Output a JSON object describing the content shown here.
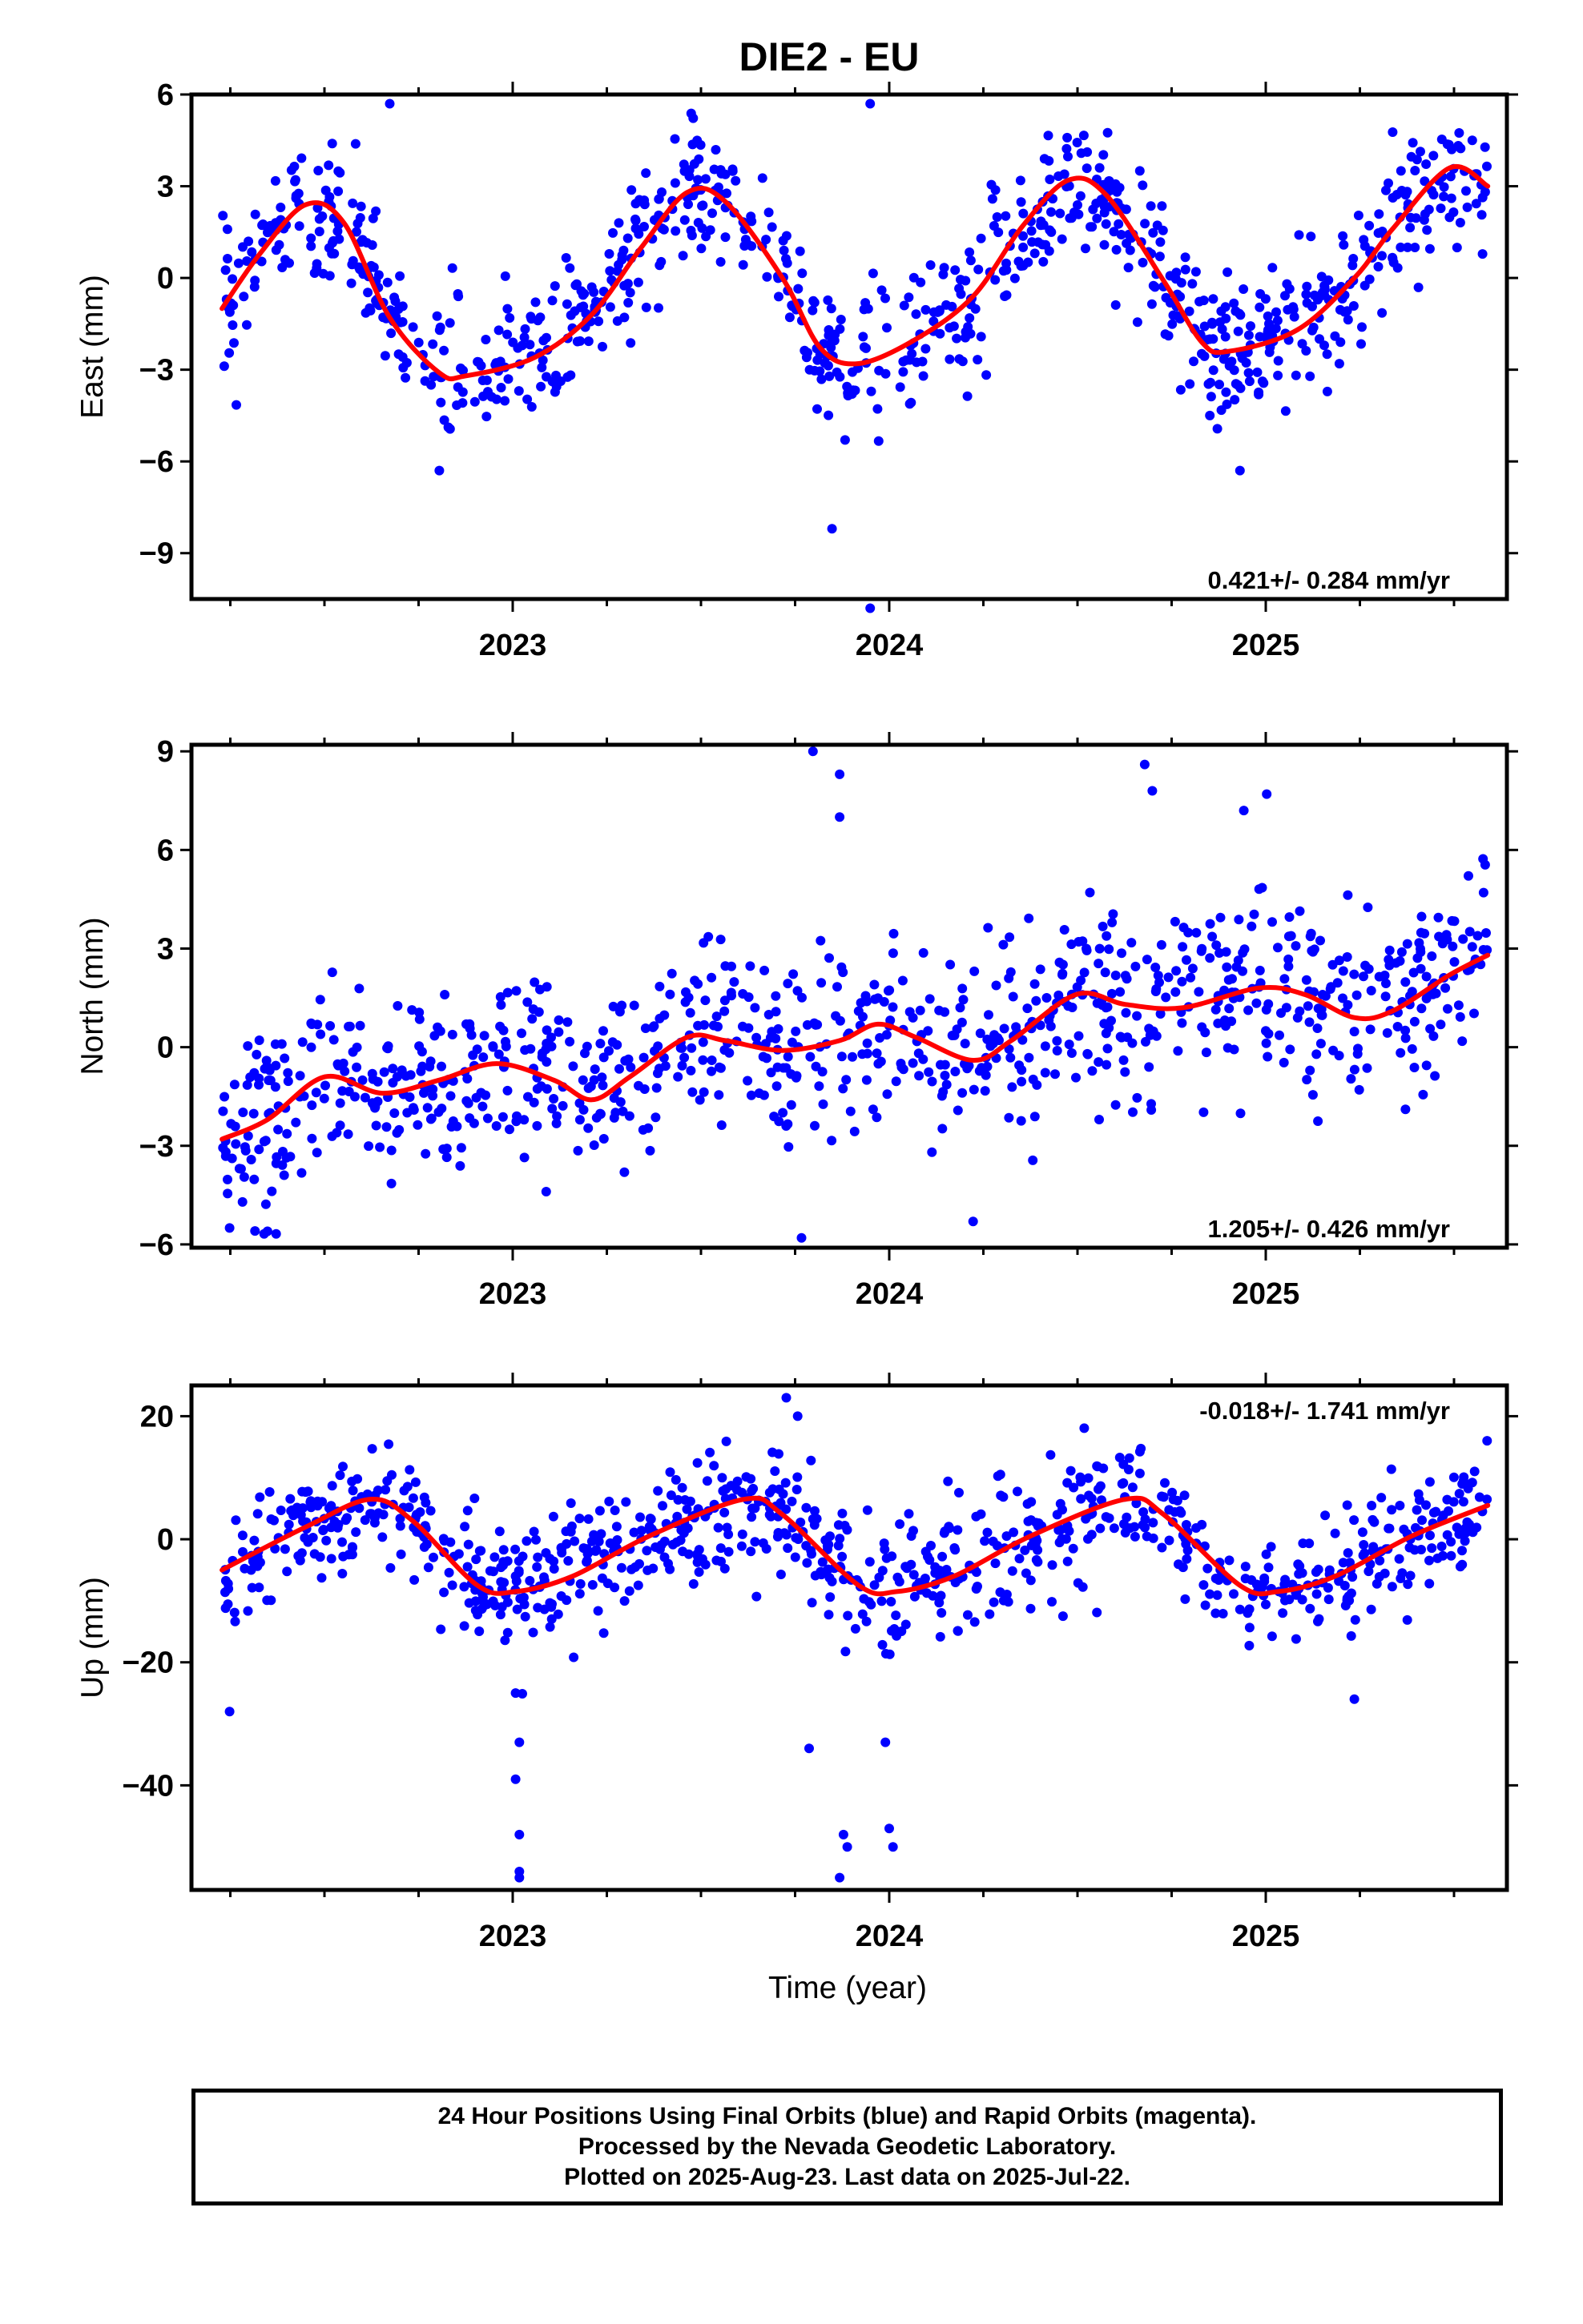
{
  "title": "DIE2 - EU",
  "xlabel": "Time (year)",
  "footer": {
    "line1": "24 Hour Positions Using Final Orbits (blue) and Rapid Orbits (magenta).",
    "line2": "Processed by the Nevada Geodetic Laboratory.",
    "line3": "Plotted on 2025-Aug-23. Last data on 2025-Jul-22."
  },
  "colors": {
    "points": "#0000ff",
    "fit": "#ff0000",
    "axes": "#000000"
  },
  "chart_data": [
    {
      "type": "scatter",
      "ylabel": "East (mm)",
      "xlim": [
        2022.2,
        2025.65
      ],
      "ylim": [
        -10.5,
        6
      ],
      "x_ticks": [
        "2023",
        "2024",
        "2025"
      ],
      "y_ticks": [
        6,
        3,
        0,
        -3,
        -6,
        -9
      ],
      "rate": "0.421+/- 0.284 mm/yr",
      "fit_points": [
        [
          2022.28,
          -1.0
        ],
        [
          2022.38,
          0.8
        ],
        [
          2022.5,
          2.4
        ],
        [
          2022.6,
          1.8
        ],
        [
          2022.72,
          -1.3
        ],
        [
          2022.85,
          -3.1
        ],
        [
          2022.92,
          -3.2
        ],
        [
          2023.1,
          -2.6
        ],
        [
          2023.25,
          -1.2
        ],
        [
          2023.38,
          1.0
        ],
        [
          2023.5,
          2.8
        ],
        [
          2023.6,
          2.5
        ],
        [
          2023.75,
          0.0
        ],
        [
          2023.85,
          -2.3
        ],
        [
          2023.95,
          -2.8
        ],
        [
          2024.1,
          -2.0
        ],
        [
          2024.25,
          -0.6
        ],
        [
          2024.38,
          1.7
        ],
        [
          2024.5,
          3.2
        ],
        [
          2024.6,
          2.7
        ],
        [
          2024.75,
          -0.1
        ],
        [
          2024.85,
          -2.1
        ],
        [
          2024.92,
          -2.4
        ],
        [
          2025.1,
          -1.7
        ],
        [
          2025.25,
          0.0
        ],
        [
          2025.35,
          1.6
        ],
        [
          2025.5,
          3.6
        ],
        [
          2025.6,
          3.0
        ]
      ],
      "anomalies": [
        [
          2022.72,
          5.7
        ],
        [
          2023.98,
          5.7
        ],
        [
          2023.88,
          -8.2
        ],
        [
          2023.98,
          -10.8
        ],
        [
          2022.85,
          -6.3
        ],
        [
          2024.95,
          -6.3
        ]
      ]
    },
    {
      "type": "scatter",
      "ylabel": "North (mm)",
      "xlim": [
        2022.2,
        2025.65
      ],
      "ylim": [
        -6.1,
        9.2
      ],
      "x_ticks": [
        "2023",
        "2024",
        "2025"
      ],
      "y_ticks": [
        9,
        6,
        3,
        0,
        -3,
        -6
      ],
      "rate": "1.205+/- 0.426 mm/yr",
      "fit_points": [
        [
          2022.28,
          -2.8
        ],
        [
          2022.4,
          -2.2
        ],
        [
          2022.55,
          -0.9
        ],
        [
          2022.7,
          -1.4
        ],
        [
          2022.85,
          -1.0
        ],
        [
          2023.0,
          -0.5
        ],
        [
          2023.15,
          -1.0
        ],
        [
          2023.25,
          -1.6
        ],
        [
          2023.35,
          -0.9
        ],
        [
          2023.5,
          0.3
        ],
        [
          2023.6,
          0.2
        ],
        [
          2023.75,
          -0.1
        ],
        [
          2023.9,
          0.2
        ],
        [
          2024.0,
          0.7
        ],
        [
          2024.1,
          0.3
        ],
        [
          2024.25,
          -0.4
        ],
        [
          2024.35,
          0.2
        ],
        [
          2024.52,
          1.6
        ],
        [
          2024.65,
          1.3
        ],
        [
          2024.8,
          1.2
        ],
        [
          2025.0,
          1.8
        ],
        [
          2025.12,
          1.6
        ],
        [
          2025.25,
          0.9
        ],
        [
          2025.35,
          1.1
        ],
        [
          2025.5,
          2.2
        ],
        [
          2025.6,
          2.8
        ]
      ],
      "anomalies": [
        [
          2023.83,
          9.0
        ],
        [
          2023.9,
          8.3
        ],
        [
          2024.7,
          8.6
        ],
        [
          2024.72,
          7.8
        ],
        [
          2024.96,
          7.2
        ],
        [
          2025.02,
          7.7
        ],
        [
          2023.9,
          7.0
        ],
        [
          2023.8,
          -5.8
        ],
        [
          2022.3,
          -5.5
        ],
        [
          2024.25,
          -5.3
        ]
      ]
    },
    {
      "type": "scatter",
      "ylabel": "Up (mm)",
      "xlim": [
        2022.2,
        2025.65
      ],
      "ylim": [
        -57,
        25
      ],
      "x_ticks": [
        "2023",
        "2024",
        "2025"
      ],
      "y_ticks": [
        20,
        0,
        -20,
        -40
      ],
      "rate": "-0.018+/- 1.741 mm/yr",
      "fit_points": [
        [
          2022.28,
          -5.0
        ],
        [
          2022.5,
          2.0
        ],
        [
          2022.67,
          6.5
        ],
        [
          2022.78,
          3.0
        ],
        [
          2022.95,
          -7.5
        ],
        [
          2023.05,
          -8.5
        ],
        [
          2023.2,
          -6.0
        ],
        [
          2023.4,
          0.5
        ],
        [
          2023.65,
          6.5
        ],
        [
          2023.75,
          4.0
        ],
        [
          2023.95,
          -7.5
        ],
        [
          2024.05,
          -8.5
        ],
        [
          2024.2,
          -6.0
        ],
        [
          2024.4,
          0.5
        ],
        [
          2024.65,
          6.5
        ],
        [
          2024.75,
          4.0
        ],
        [
          2024.95,
          -7.5
        ],
        [
          2025.05,
          -8.5
        ],
        [
          2025.2,
          -6.0
        ],
        [
          2025.4,
          0.5
        ],
        [
          2025.6,
          5.5
        ]
      ],
      "anomalies": [
        [
          2023.06,
          -55
        ],
        [
          2023.06,
          -54
        ],
        [
          2023.06,
          -48
        ],
        [
          2023.05,
          -39
        ],
        [
          2023.06,
          -33
        ],
        [
          2023.05,
          -25
        ],
        [
          2023.91,
          -48
        ],
        [
          2023.92,
          -50
        ],
        [
          2023.9,
          -55
        ],
        [
          2024.03,
          -47
        ],
        [
          2024.04,
          -50
        ],
        [
          2024.02,
          -33
        ],
        [
          2023.82,
          -34
        ],
        [
          2022.3,
          -28
        ],
        [
          2025.25,
          -26
        ],
        [
          2023.76,
          23
        ],
        [
          2023.79,
          20
        ]
      ]
    }
  ]
}
